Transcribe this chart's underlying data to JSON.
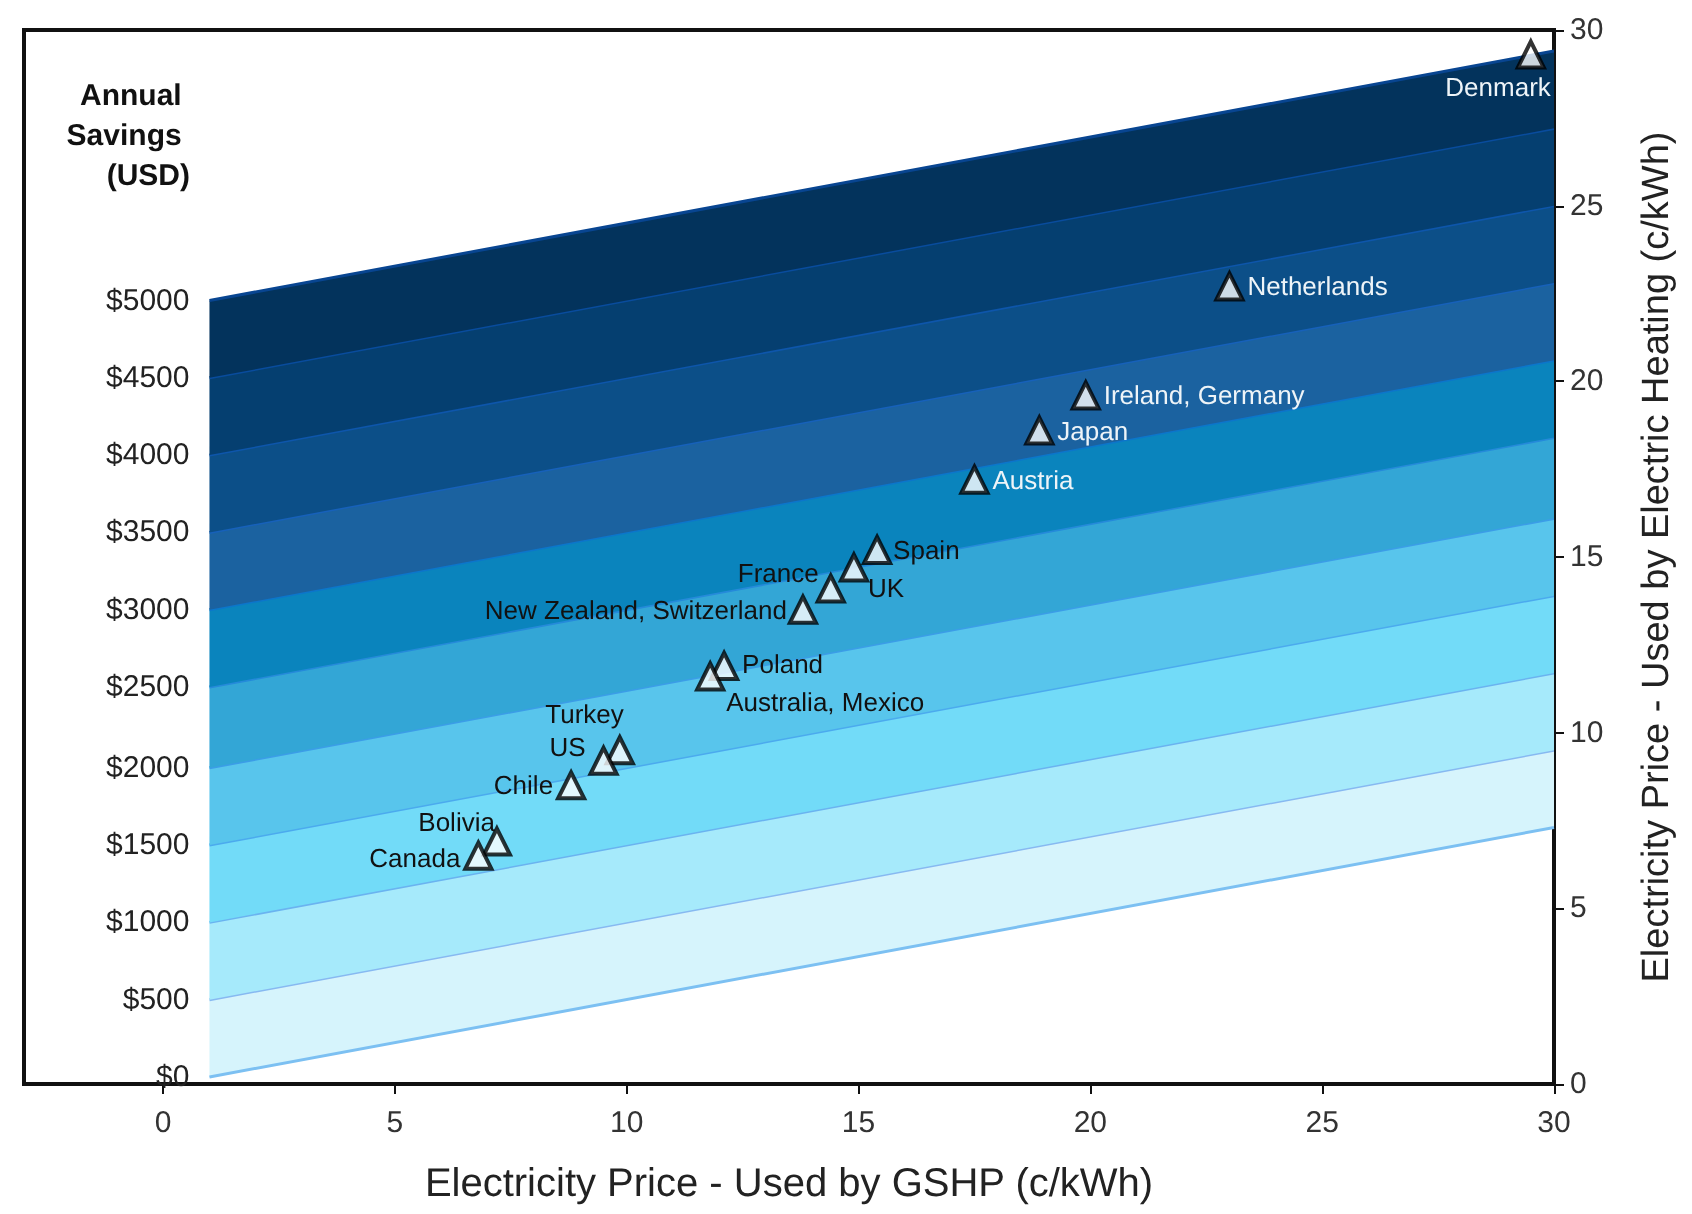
{
  "chart_data": {
    "type": "scatter",
    "xlabel": "Electricity Price - Used by GSHP (c/kWh)",
    "ylabel": "Electricity Price - Used by Electric Heating (c/kWh)",
    "xlim": [
      -3,
      30
    ],
    "xticks": [
      0,
      5,
      10,
      15,
      20,
      25,
      30
    ],
    "ylim": [
      0,
      30
    ],
    "yticks": [
      0,
      5,
      10,
      15,
      20,
      25,
      30
    ],
    "grid": false,
    "annotations": [
      "Annual Savings (USD)",
      {
        "text": "$0",
        "x": 1,
        "y": 0.2
      },
      {
        "text": "$500",
        "x": 1,
        "y": 2.4
      },
      {
        "text": "$1000",
        "x": 1,
        "y": 4.6
      },
      {
        "text": "$1500",
        "x": 1,
        "y": 6.8
      },
      {
        "text": "$2000",
        "x": 1,
        "y": 9.0
      },
      {
        "text": "$2500",
        "x": 1,
        "y": 11.3
      },
      {
        "text": "$3000",
        "x": 1,
        "y": 13.5
      },
      {
        "text": "$3500",
        "x": 1,
        "y": 15.7
      },
      {
        "text": "$4000",
        "x": 1,
        "y": 17.9
      },
      {
        "text": "$4500",
        "x": 1,
        "y": 20.1
      },
      {
        "text": "$5000",
        "x": 1,
        "y": 22.3
      },
      {
        "text": "Denmark",
        "x": 29.5,
        "y": 29.3
      },
      {
        "text": "Netherlands",
        "x": 23.0,
        "y": 22.7
      },
      {
        "text": "Ireland, Germany",
        "x": 19.9,
        "y": 19.6
      },
      {
        "text": "Japan",
        "x": 18.9,
        "y": 18.6
      },
      {
        "text": "Austria",
        "x": 17.5,
        "y": 17.2
      },
      {
        "text": "Spain",
        "x": 15.4,
        "y": 15.2
      },
      {
        "text": "UK",
        "x": 14.9,
        "y": 14.7
      },
      {
        "text": "France",
        "x": 14.4,
        "y": 14.1
      },
      {
        "text": "New Zealand, Switzerland",
        "x": 13.8,
        "y": 13.5
      },
      {
        "text": "Poland",
        "x": 12.1,
        "y": 11.9
      },
      {
        "text": "Australia, Mexico",
        "x": 11.8,
        "y": 11.6
      },
      {
        "text": "Turkey",
        "x": 9.85,
        "y": 9.5
      },
      {
        "text": "US",
        "x": 9.5,
        "y": 9.2
      },
      {
        "text": "Chile",
        "x": 8.8,
        "y": 8.5
      },
      {
        "text": "Bolivia",
        "x": 7.2,
        "y": 6.9
      },
      {
        "text": "Canada",
        "x": 6.8,
        "y": 6.5
      }
    ],
    "series": [
      {
        "type": "line",
        "color": "#7cc0f2",
        "x": [
          1,
          30
        ],
        "values": [
          0.2,
          7.3
        ]
      },
      {
        "type": "area",
        "color": "#d6f4fc",
        "x": [
          1,
          30
        ],
        "values": [
          2.4,
          9.5
        ]
      },
      {
        "type": "area",
        "color": "#a6eafb",
        "x": [
          1,
          30
        ],
        "values": [
          4.6,
          11.7
        ]
      },
      {
        "type": "area",
        "color": "#72dbf8",
        "x": [
          1,
          30
        ],
        "values": [
          6.8,
          13.9
        ]
      },
      {
        "type": "area",
        "color": "#58c5ec",
        "x": [
          1,
          30
        ],
        "values": [
          9.0,
          16.1
        ]
      },
      {
        "type": "area",
        "color": "#33a6d6",
        "x": [
          1,
          30
        ],
        "values": [
          11.3,
          18.4
        ]
      },
      {
        "type": "area",
        "color": "#0a84bd",
        "x": [
          1,
          30
        ],
        "values": [
          13.5,
          20.6
        ]
      },
      {
        "type": "area",
        "color": "#1b62a0",
        "x": [
          1,
          30
        ],
        "values": [
          15.7,
          22.8
        ]
      },
      {
        "type": "area",
        "color": "#0c4f88",
        "x": [
          1,
          30
        ],
        "values": [
          17.9,
          25.0
        ]
      },
      {
        "type": "area",
        "color": "#053f70",
        "x": [
          1,
          30
        ],
        "values": [
          20.1,
          27.2
        ]
      },
      {
        "type": "area",
        "color": "#03335c",
        "x": [
          1,
          30
        ],
        "values": [
          22.3,
          29.4
        ]
      },
      {
        "color": "#ffffff",
        "marker": "triangle",
        "x": [
          29.5,
          23.0,
          19.9,
          18.9,
          17.5,
          15.4,
          14.9,
          14.4,
          13.8,
          12.1,
          11.8,
          9.85,
          9.5,
          8.8,
          7.2,
          6.8
        ],
        "values": [
          29.3,
          22.7,
          19.6,
          18.6,
          17.2,
          15.2,
          14.7,
          14.1,
          13.5,
          11.9,
          11.6,
          9.5,
          9.2,
          8.5,
          6.9,
          6.5
        ]
      }
    ]
  }
}
